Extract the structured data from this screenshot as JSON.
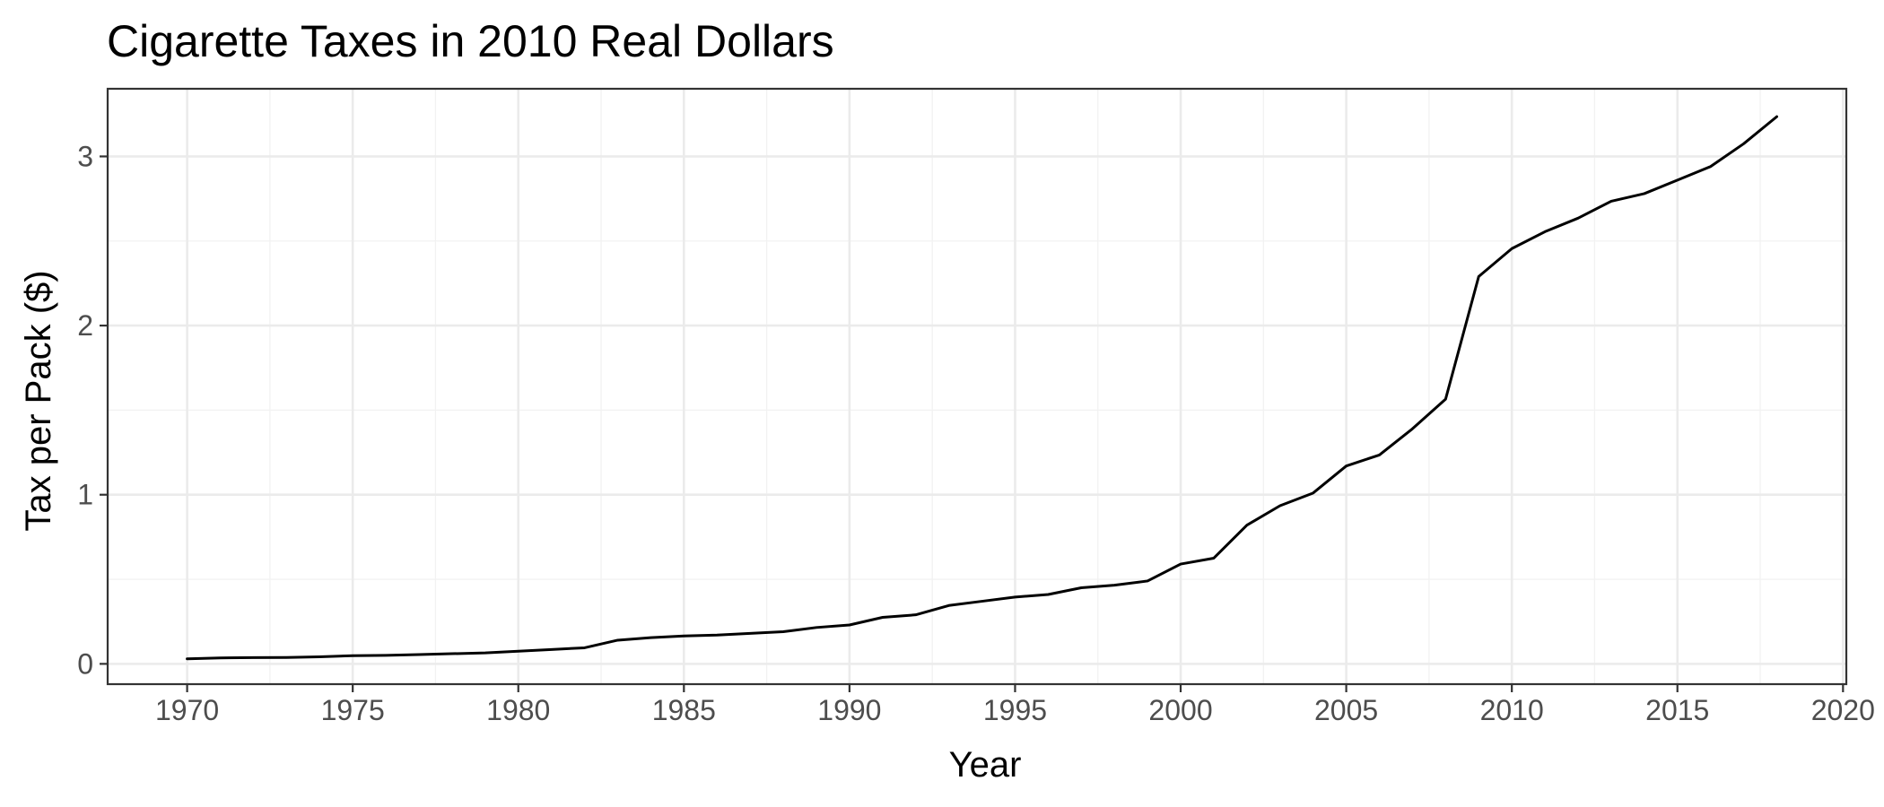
{
  "chart_data": {
    "type": "line",
    "title": "Cigarette Taxes in 2010 Real Dollars",
    "xlabel": "Year",
    "ylabel": "Tax per Pack ($)",
    "xlim": [
      1967.6,
      2020.1
    ],
    "ylim": [
      -0.12,
      3.4
    ],
    "x_ticks": [
      1970,
      1975,
      1980,
      1985,
      1990,
      1995,
      2000,
      2005,
      2010,
      2015,
      2020
    ],
    "y_ticks": [
      0,
      1,
      2,
      3
    ],
    "x_tick_labels": [
      "1970",
      "1975",
      "1980",
      "1985",
      "1990",
      "1995",
      "2000",
      "2005",
      "2010",
      "2015",
      "2020"
    ],
    "y_tick_labels": [
      "0",
      "1",
      "2",
      "3"
    ],
    "grid": true,
    "legend": "none",
    "line_color": "#000000",
    "x": [
      1970,
      1971,
      1972,
      1973,
      1974,
      1975,
      1976,
      1977,
      1978,
      1979,
      1980,
      1981,
      1982,
      1983,
      1984,
      1985,
      1986,
      1987,
      1988,
      1989,
      1990,
      1991,
      1992,
      1993,
      1994,
      1995,
      1996,
      1997,
      1998,
      1999,
      2000,
      2001,
      2002,
      2003,
      2004,
      2005,
      2006,
      2007,
      2008,
      2009,
      2010,
      2011,
      2012,
      2013,
      2014,
      2015,
      2016,
      2017,
      2018
    ],
    "y": [
      0.03,
      0.035,
      0.037,
      0.038,
      0.042,
      0.048,
      0.05,
      0.055,
      0.06,
      0.065,
      0.075,
      0.085,
      0.095,
      0.14,
      0.155,
      0.165,
      0.17,
      0.18,
      0.19,
      0.215,
      0.23,
      0.275,
      0.29,
      0.345,
      0.37,
      0.395,
      0.41,
      0.45,
      0.465,
      0.49,
      0.59,
      0.625,
      0.82,
      0.935,
      1.01,
      1.17,
      1.235,
      1.39,
      1.565,
      2.29,
      2.455,
      2.555,
      2.635,
      2.735,
      2.78,
      2.86,
      2.94,
      3.075,
      3.235
    ]
  }
}
